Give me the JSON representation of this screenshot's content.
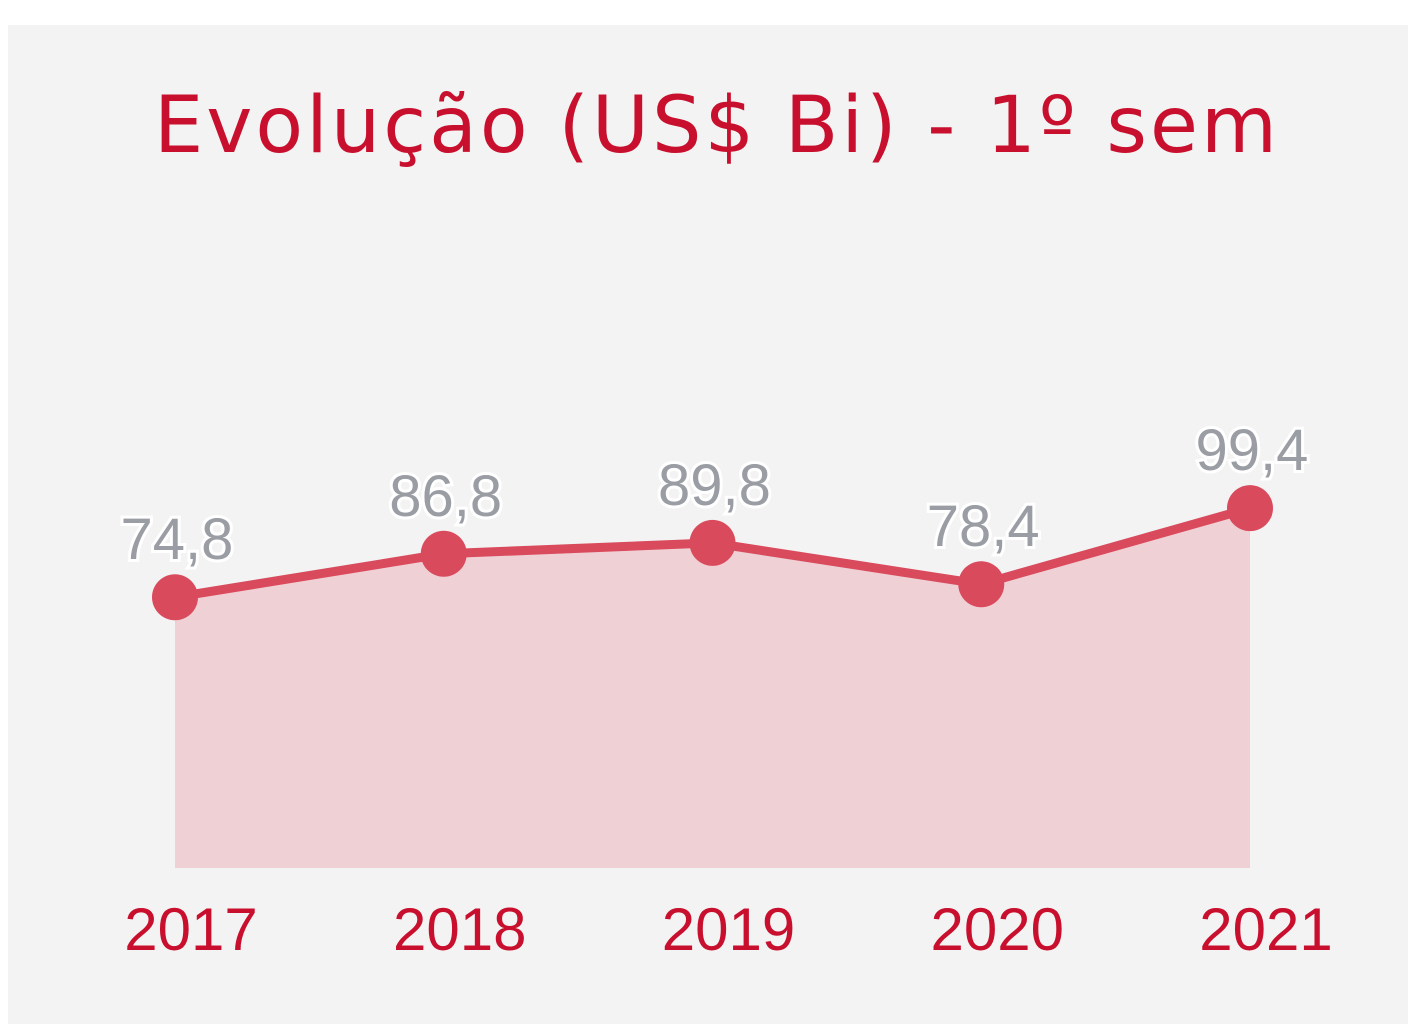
{
  "chart_data": {
    "type": "area",
    "title": "Evolução (US$ Bi) - 1º sem",
    "categories": [
      "2017",
      "2018",
      "2019",
      "2020",
      "2021"
    ],
    "values": [
      74.8,
      86.8,
      89.8,
      78.4,
      99.4
    ],
    "value_labels": [
      "74,8",
      "86,8",
      "89,8",
      "78,4",
      "99,4"
    ],
    "color": "#d94a5c",
    "fill_color": "#efd0d5"
  }
}
